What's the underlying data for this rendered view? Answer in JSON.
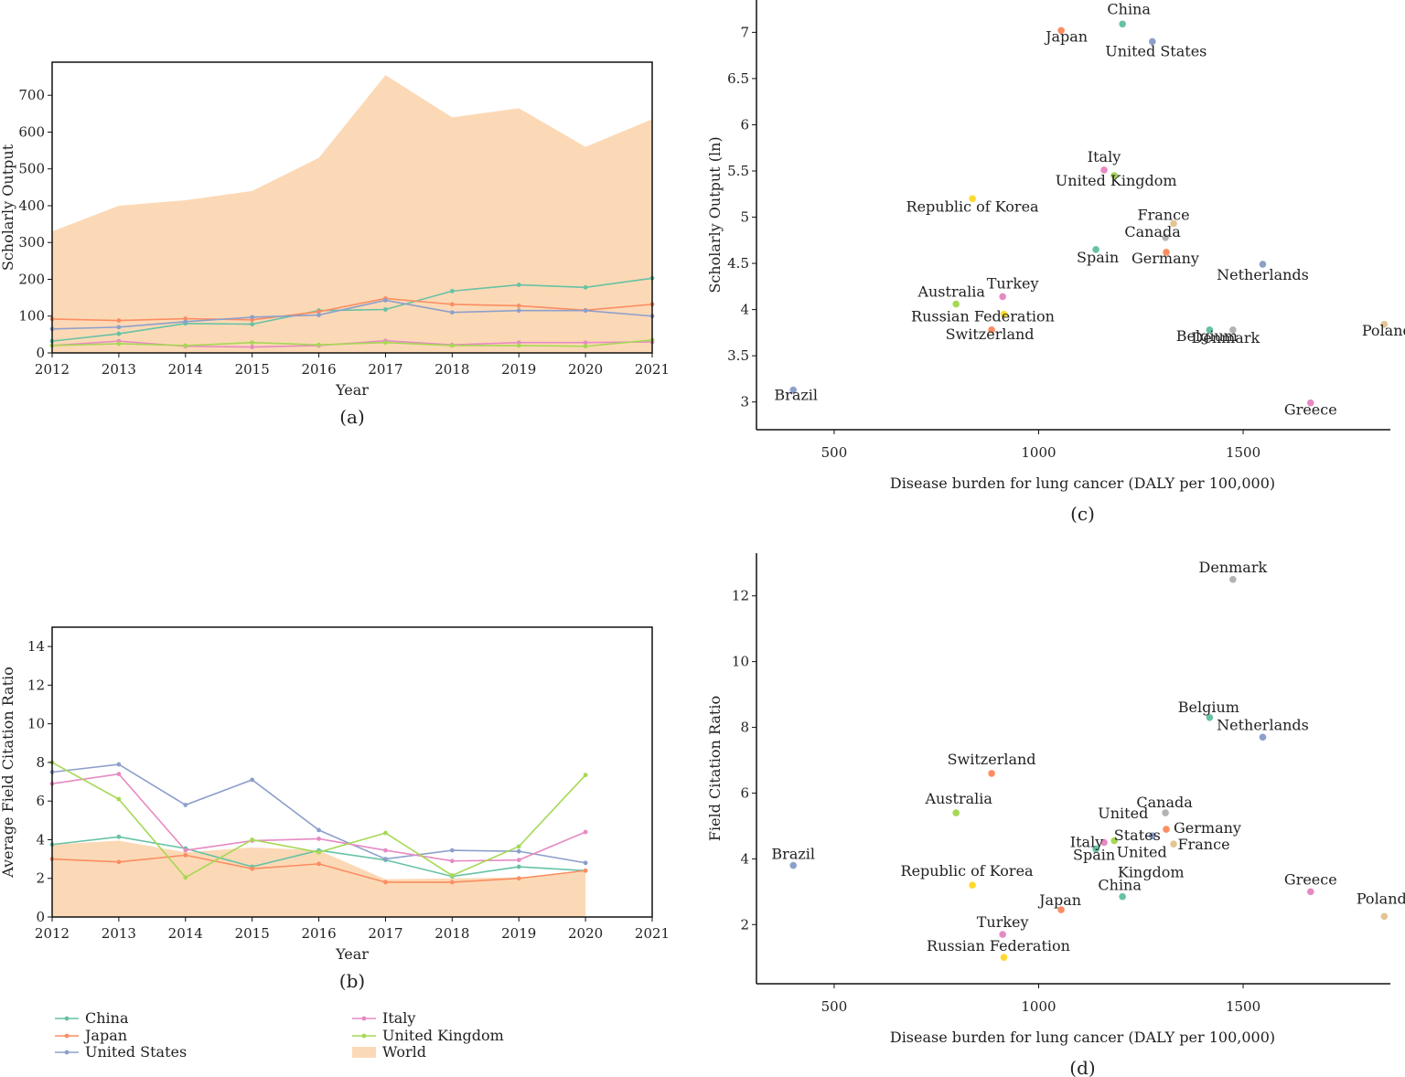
{
  "colors": {
    "China": "#66c2a5",
    "Japan": "#fc8d62",
    "United States": "#8da0cb",
    "Italy": "#e78ac3",
    "United Kingdom": "#a6d854",
    "World": "#fcd9b6"
  },
  "legend": [
    {
      "name": "China",
      "type": "line"
    },
    {
      "name": "Japan",
      "type": "line"
    },
    {
      "name": "United States",
      "type": "line"
    },
    {
      "name": "Italy",
      "type": "line"
    },
    {
      "name": "United Kingdom",
      "type": "line"
    },
    {
      "name": "World",
      "type": "area"
    }
  ],
  "chart_data": [
    {
      "panel": "(a)",
      "type": "line",
      "xlabel": "Year",
      "ylabel": "Scholarly Output",
      "x": [
        2012,
        2013,
        2014,
        2015,
        2016,
        2017,
        2018,
        2019,
        2020,
        2021
      ],
      "xticks": [
        "2012",
        "2013",
        "2014",
        "2015",
        "2016",
        "2017",
        "2018",
        "2019",
        "2020",
        "2021"
      ],
      "ylim": [
        0,
        790
      ],
      "yticks": [
        0,
        100,
        200,
        300,
        400,
        500,
        600,
        700
      ],
      "area": {
        "name": "World",
        "values": [
          330,
          400,
          415,
          440,
          530,
          755,
          640,
          665,
          560,
          635
        ]
      },
      "series": [
        {
          "name": "China",
          "values": [
            32,
            52,
            80,
            78,
            115,
            118,
            168,
            185,
            178,
            203
          ]
        },
        {
          "name": "Japan",
          "values": [
            92,
            88,
            93,
            90,
            112,
            148,
            132,
            128,
            116,
            132
          ]
        },
        {
          "name": "United States",
          "values": [
            65,
            70,
            85,
            97,
            103,
            143,
            110,
            115,
            115,
            100
          ]
        },
        {
          "name": "Italy",
          "values": [
            20,
            32,
            18,
            16,
            20,
            33,
            22,
            28,
            28,
            30
          ]
        },
        {
          "name": "United Kingdom",
          "values": [
            20,
            25,
            20,
            28,
            22,
            28,
            20,
            20,
            18,
            35
          ]
        }
      ]
    },
    {
      "panel": "(b)",
      "type": "line",
      "xlabel": "Year",
      "ylabel": "Average Field Citation Ratio",
      "x": [
        2012,
        2013,
        2014,
        2015,
        2016,
        2017,
        2018,
        2019,
        2020,
        2021
      ],
      "xticks": [
        "2012",
        "2013",
        "2014",
        "2015",
        "2016",
        "2017",
        "2018",
        "2019",
        "2020",
        "2021"
      ],
      "ylim": [
        0,
        15
      ],
      "yticks": [
        0,
        2,
        4,
        6,
        8,
        10,
        12,
        14
      ],
      "area": {
        "name": "World",
        "x": [
          2012,
          2013,
          2014,
          2015,
          2016,
          2017,
          2018,
          2019,
          2020
        ],
        "values": [
          3.75,
          3.95,
          3.35,
          3.6,
          3.45,
          1.95,
          2.0,
          2.05,
          2.35
        ]
      },
      "series": [
        {
          "name": "China",
          "x": [
            2012,
            2013,
            2014,
            2015,
            2016,
            2017,
            2018,
            2019,
            2020
          ],
          "values": [
            3.75,
            4.15,
            3.55,
            2.6,
            3.45,
            2.95,
            2.1,
            2.6,
            2.4
          ]
        },
        {
          "name": "Japan",
          "x": [
            2012,
            2013,
            2014,
            2015,
            2016,
            2017,
            2018,
            2019,
            2020
          ],
          "values": [
            3.0,
            2.85,
            3.2,
            2.5,
            2.75,
            1.8,
            1.8,
            2.0,
            2.4
          ]
        },
        {
          "name": "United States",
          "x": [
            2012,
            2013,
            2014,
            2015,
            2016,
            2017,
            2018,
            2019,
            2020
          ],
          "values": [
            7.5,
            7.9,
            5.8,
            7.1,
            4.5,
            3.0,
            3.45,
            3.4,
            2.8
          ]
        },
        {
          "name": "Italy",
          "x": [
            2012,
            2013,
            2014,
            2015,
            2016,
            2017,
            2018,
            2019,
            2020
          ],
          "values": [
            6.9,
            7.4,
            3.45,
            3.95,
            4.05,
            3.45,
            2.9,
            2.95,
            4.4
          ]
        },
        {
          "name": "United Kingdom",
          "x": [
            2012,
            2013,
            2014,
            2015,
            2016,
            2017,
            2018,
            2019,
            2020
          ],
          "values": [
            8.0,
            6.1,
            2.05,
            4.0,
            3.35,
            4.35,
            2.15,
            3.65,
            7.35
          ]
        }
      ]
    },
    {
      "panel": "(c)",
      "type": "scatter",
      "xlabel": "Disease burden for lung cancer (DALY per 100,000)",
      "ylabel": "Scholarly Output (ln)",
      "xlim": [
        310,
        1860
      ],
      "ylim": [
        2.7,
        7.35
      ],
      "xticks": [
        500,
        1000,
        1500
      ],
      "yticks": [
        "3",
        "3.5",
        "4",
        "4.5",
        "5",
        "5.5",
        "6",
        "6.5",
        "7"
      ],
      "points": [
        {
          "label": "China",
          "x": 1205,
          "y": 7.09,
          "color": "#66c2a5"
        },
        {
          "label": "Japan",
          "x": 1055,
          "y": 7.02,
          "color": "#fc8d62"
        },
        {
          "label": "United States",
          "x": 1278,
          "y": 6.9,
          "color": "#8da0cb"
        },
        {
          "label": "Italy",
          "x": 1160,
          "y": 5.51,
          "color": "#e78ac3"
        },
        {
          "label": "United Kingdom",
          "x": 1185,
          "y": 5.45,
          "color": "#a6d854"
        },
        {
          "label": "Republic of Korea",
          "x": 838,
          "y": 5.2,
          "color": "#ffd92f"
        },
        {
          "label": "France",
          "x": 1330,
          "y": 4.93,
          "color": "#e5c494"
        },
        {
          "label": "Canada",
          "x": 1310,
          "y": 4.78,
          "color": "#b3b3b3"
        },
        {
          "label": "Spain",
          "x": 1140,
          "y": 4.65,
          "color": "#66c2a5"
        },
        {
          "label": "Germany",
          "x": 1312,
          "y": 4.62,
          "color": "#fc8d62"
        },
        {
          "label": "Netherlands",
          "x": 1548,
          "y": 4.49,
          "color": "#8da0cb"
        },
        {
          "label": "Turkey",
          "x": 912,
          "y": 4.14,
          "color": "#e78ac3"
        },
        {
          "label": "Australia",
          "x": 798,
          "y": 4.06,
          "color": "#a6d854"
        },
        {
          "label": "Russian Federation",
          "x": 915,
          "y": 3.95,
          "color": "#ffd92f"
        },
        {
          "label": "Switzerland",
          "x": 885,
          "y": 3.78,
          "color": "#fc8d62"
        },
        {
          "label": "Belgium",
          "x": 1418,
          "y": 3.78,
          "color": "#66c2a5"
        },
        {
          "label": "Denmark",
          "x": 1475,
          "y": 3.78,
          "color": "#b3b3b3"
        },
        {
          "label": "Poland",
          "x": 1845,
          "y": 3.84,
          "color": "#e5c494"
        },
        {
          "label": "Brazil",
          "x": 400,
          "y": 3.13,
          "color": "#8da0cb"
        },
        {
          "label": "Greece",
          "x": 1665,
          "y": 2.99,
          "color": "#e78ac3"
        }
      ]
    },
    {
      "panel": "(d)",
      "type": "scatter",
      "xlabel": "Disease burden for lung cancer (DALY per 100,000)",
      "ylabel": "Field Citation Ratio",
      "xlim": [
        310,
        1860
      ],
      "ylim": [
        0.2,
        13.3
      ],
      "xticks": [
        500,
        1000,
        1500
      ],
      "yticks": [
        2,
        4,
        6,
        8,
        10,
        12
      ],
      "points": [
        {
          "label": "Denmark",
          "x": 1475,
          "y": 12.5,
          "color": "#b3b3b3"
        },
        {
          "label": "Belgium",
          "x": 1418,
          "y": 8.3,
          "color": "#66c2a5"
        },
        {
          "label": "Netherlands",
          "x": 1548,
          "y": 7.7,
          "color": "#8da0cb"
        },
        {
          "label": "Switzerland",
          "x": 885,
          "y": 6.6,
          "color": "#fc8d62"
        },
        {
          "label": "Australia",
          "x": 798,
          "y": 5.4,
          "color": "#a6d854"
        },
        {
          "label": "Canada",
          "x": 1310,
          "y": 5.4,
          "color": "#b3b3b3"
        },
        {
          "label": "Germany",
          "x": 1312,
          "y": 4.9,
          "color": "#fc8d62"
        },
        {
          "label": "United States",
          "x": 1278,
          "y": 4.7,
          "color": "#8da0cb"
        },
        {
          "label": "United Kingdom",
          "x": 1185,
          "y": 4.55,
          "color": "#a6d854"
        },
        {
          "label": "Italy",
          "x": 1160,
          "y": 4.5,
          "color": "#e78ac3"
        },
        {
          "label": "France",
          "x": 1330,
          "y": 4.45,
          "color": "#e5c494"
        },
        {
          "label": "Spain",
          "x": 1140,
          "y": 4.3,
          "color": "#66c2a5"
        },
        {
          "label": "Brazil",
          "x": 400,
          "y": 3.8,
          "color": "#8da0cb"
        },
        {
          "label": "Republic of Korea",
          "x": 838,
          "y": 3.2,
          "color": "#ffd92f"
        },
        {
          "label": "Greece",
          "x": 1665,
          "y": 3.0,
          "color": "#e78ac3"
        },
        {
          "label": "China",
          "x": 1205,
          "y": 2.85,
          "color": "#66c2a5"
        },
        {
          "label": "Japan",
          "x": 1055,
          "y": 2.45,
          "color": "#fc8d62"
        },
        {
          "label": "Poland",
          "x": 1845,
          "y": 2.25,
          "color": "#e5c494"
        },
        {
          "label": "Turkey",
          "x": 912,
          "y": 1.7,
          "color": "#e78ac3"
        },
        {
          "label": "Russian Federation",
          "x": 915,
          "y": 1.0,
          "color": "#ffd92f"
        }
      ]
    }
  ]
}
